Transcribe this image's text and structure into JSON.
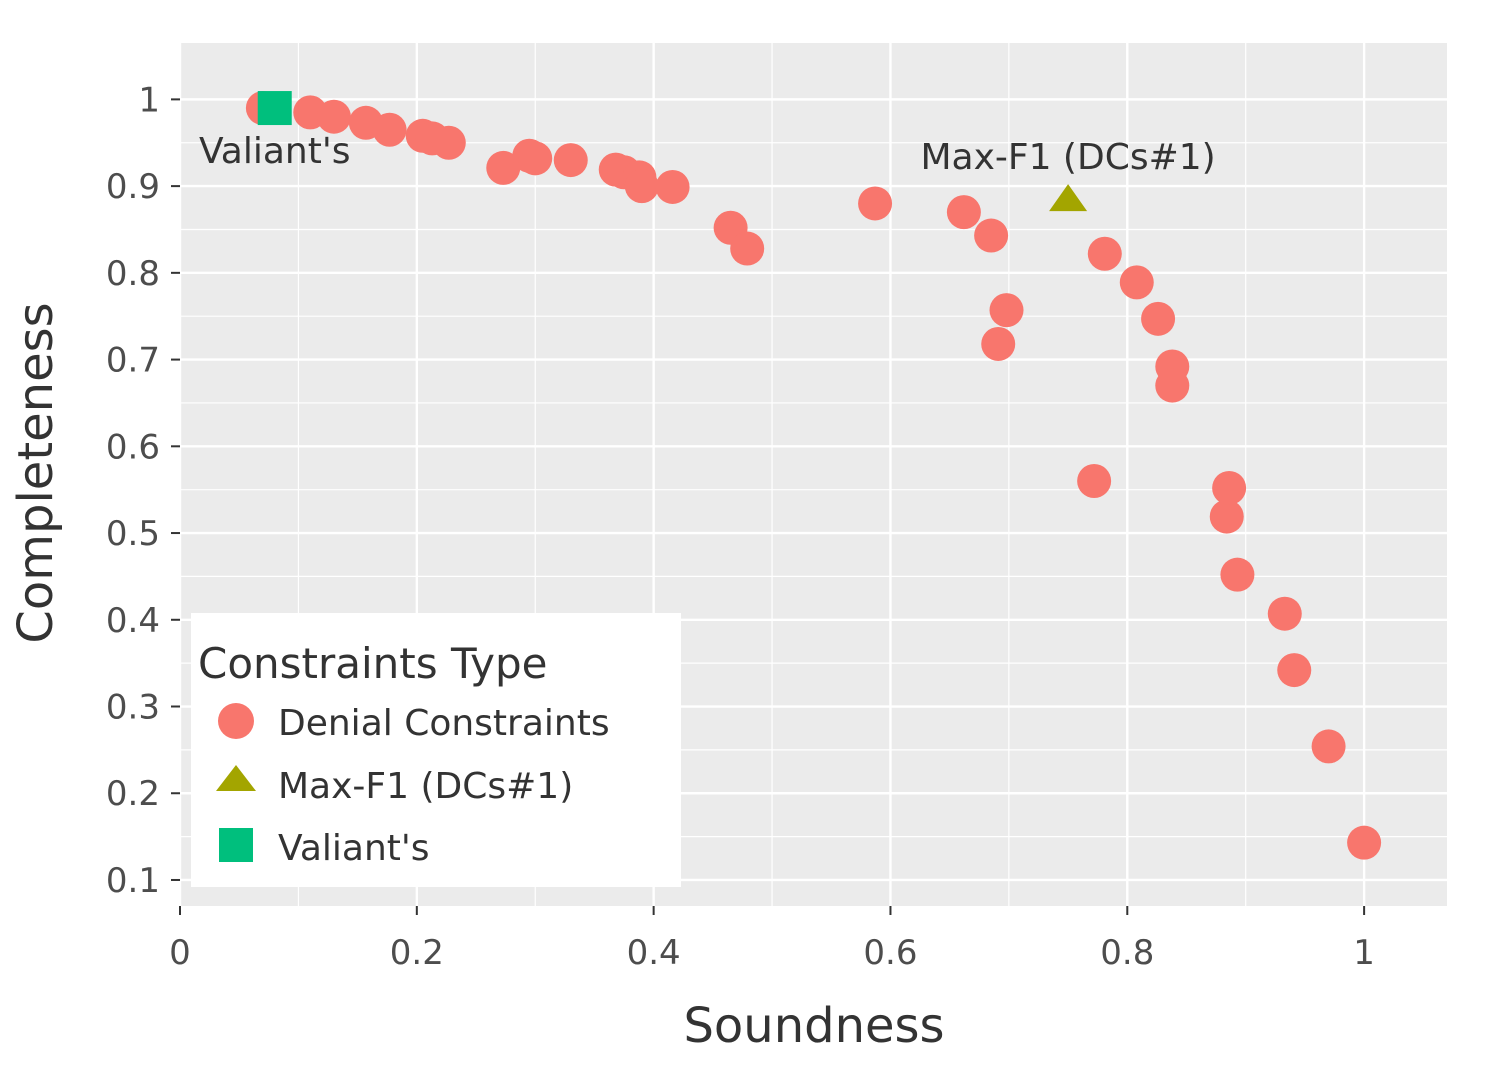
{
  "chart_data": {
    "type": "scatter",
    "xlabel": "Soundness",
    "ylabel": "Completeness",
    "xlim": [
      0,
      1.07
    ],
    "ylim": [
      0.07,
      1.065
    ],
    "x_ticks": [
      0,
      0.2,
      0.4,
      0.6,
      0.8,
      1
    ],
    "x_tick_labels": [
      "0",
      "0.2",
      "0.4",
      "0.6",
      "0.8",
      "1"
    ],
    "y_ticks": [
      0.1,
      0.2,
      0.3,
      0.4,
      0.5,
      0.6,
      0.7,
      0.8,
      0.9,
      1
    ],
    "y_tick_labels": [
      "0.1",
      "0.2",
      "0.3",
      "0.4",
      "0.5",
      "0.6",
      "0.7",
      "0.8",
      "0.9",
      "1"
    ],
    "grid": true,
    "legend": {
      "title": "Constraints Type",
      "position": "bottom-left",
      "entries": [
        "Denial Constraints",
        "Max-F1 (DCs#1)",
        "Valiant's"
      ]
    },
    "series": [
      {
        "name": "Denial Constraints",
        "marker": "circle",
        "color": "#F8766D",
        "points": [
          [
            0.07,
            0.99
          ],
          [
            0.11,
            0.985
          ],
          [
            0.13,
            0.98
          ],
          [
            0.157,
            0.973
          ],
          [
            0.177,
            0.965
          ],
          [
            0.205,
            0.958
          ],
          [
            0.213,
            0.955
          ],
          [
            0.227,
            0.95
          ],
          [
            0.273,
            0.921
          ],
          [
            0.295,
            0.935
          ],
          [
            0.3,
            0.932
          ],
          [
            0.33,
            0.93
          ],
          [
            0.368,
            0.919
          ],
          [
            0.375,
            0.916
          ],
          [
            0.388,
            0.91
          ],
          [
            0.39,
            0.9
          ],
          [
            0.416,
            0.899
          ],
          [
            0.465,
            0.852
          ],
          [
            0.479,
            0.828
          ],
          [
            0.587,
            0.88
          ],
          [
            0.662,
            0.87
          ],
          [
            0.685,
            0.843
          ],
          [
            0.691,
            0.718
          ],
          [
            0.698,
            0.757
          ],
          [
            0.772,
            0.56
          ],
          [
            0.781,
            0.822
          ],
          [
            0.808,
            0.789
          ],
          [
            0.826,
            0.747
          ],
          [
            0.838,
            0.692
          ],
          [
            0.838,
            0.67
          ],
          [
            0.884,
            0.519
          ],
          [
            0.886,
            0.552
          ],
          [
            0.893,
            0.452
          ],
          [
            0.933,
            0.407
          ],
          [
            0.941,
            0.342
          ],
          [
            0.97,
            0.254
          ],
          [
            1.0,
            0.143
          ]
        ]
      },
      {
        "name": "Max-F1 (DCs#1)",
        "marker": "triangle",
        "color": "#A3A500",
        "points": [
          [
            0.75,
            0.885
          ]
        ]
      },
      {
        "name": "Valiant's",
        "marker": "square",
        "color": "#00BF7D",
        "points": [
          [
            0.08,
            0.99
          ]
        ]
      }
    ],
    "annotations": [
      {
        "text": "Valiant's",
        "x": 0.08,
        "y": 0.99
      },
      {
        "text": "Max-F1 (DCs#1)",
        "x": 0.75,
        "y": 0.885
      }
    ]
  }
}
